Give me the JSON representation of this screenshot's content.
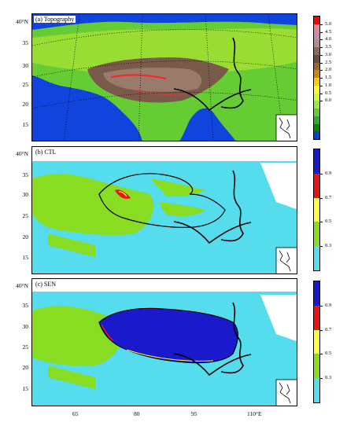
{
  "panels": [
    {
      "title": "(a) Topography",
      "yticks": [
        "40°N",
        "35",
        "30",
        "25",
        "20",
        "15"
      ]
    },
    {
      "title": "(b) CTL",
      "yticks": [
        "40°N",
        "35",
        "30",
        "25",
        "20",
        "15"
      ]
    },
    {
      "title": "(c) SEN",
      "yticks": [
        "40°N",
        "35",
        "30",
        "25",
        "20",
        "15"
      ]
    }
  ],
  "xticks": [
    "65",
    "80",
    "95",
    "110°E"
  ],
  "colorbar_topo": {
    "labels": [
      "5.0",
      "4.5",
      "4.0",
      "3.5",
      "3.0",
      "2.5",
      "2.0",
      "1.5",
      "1.0",
      "0.5",
      "0.0"
    ],
    "colors": [
      "#ff0000",
      "#dd8899",
      "#cc88aa",
      "#b0908f",
      "#8a6a5a",
      "#6a4a3a",
      "#996633",
      "#cc8800",
      "#ffcc00",
      "#ffff33",
      "#ccff33",
      "#99ee33",
      "#66cc33",
      "#33aa33",
      "#008800",
      "#0044cc"
    ]
  },
  "colorbar_snow": {
    "labels": [
      "0.9",
      "0.7",
      "0.5",
      "0.3"
    ],
    "colors": [
      "#1a1acc",
      "#ee1111",
      "#ffff44",
      "#88dd22",
      "#55ddee"
    ]
  }
}
